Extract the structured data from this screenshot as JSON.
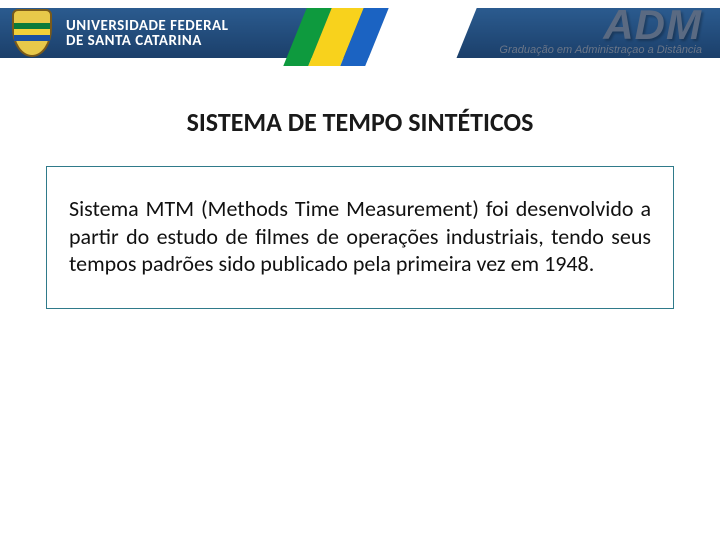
{
  "header": {
    "university_line1": "UNIVERSIDADE FEDERAL",
    "university_line2": "DE SANTA CATARINA",
    "logo_text": "ADM",
    "logo_subtitle": "Graduação em Administraçao a Distância",
    "band_gradient_top": "#2b5b8f",
    "band_gradient_bottom": "#1b3f6a",
    "stripe_green": "#0e9a3e",
    "stripe_yellow": "#f8d21c",
    "stripe_blue": "#1b63c2",
    "stripe_white": "#ffffff",
    "adm_color": "#5a6a82",
    "adm_sub_color": "#6b7688"
  },
  "slide": {
    "title": "SISTEMA DE TEMPO SINTÉTICOS",
    "body": "Sistema MTM (Methods Time Measurement) foi desenvolvido a partir do estudo de filmes de operações industriais, tendo seus tempos padrões sido publicado pela primeira vez em 1948.",
    "title_fontsize": 26,
    "body_fontsize": 22,
    "title_color": "#1a1a1a",
    "body_color": "#111111",
    "box_border_color": "#2f7a8a",
    "background_color": "#ffffff"
  }
}
